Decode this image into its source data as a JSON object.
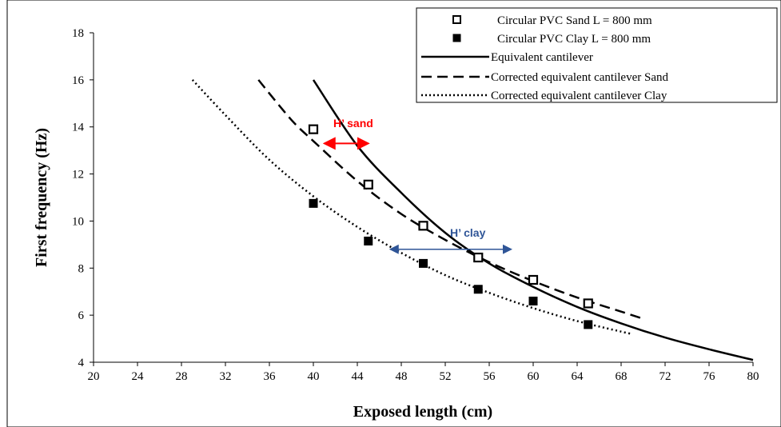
{
  "chart_data": {
    "type": "scatter",
    "xlabel": "Exposed length (cm)",
    "ylabel": "First frequency (Hz)",
    "xlim": [
      20,
      80
    ],
    "ylim": [
      4,
      18
    ],
    "xticks": [
      20,
      24,
      28,
      32,
      36,
      40,
      44,
      48,
      52,
      56,
      60,
      64,
      68,
      72,
      76,
      80
    ],
    "yticks": [
      4,
      6,
      8,
      10,
      12,
      14,
      16,
      18
    ],
    "grid": false,
    "legend_position": "top-right",
    "series": [
      {
        "name": "Circular PVC Sand L = 800 mm",
        "kind": "markers",
        "marker": "open-square",
        "x": [
          40,
          45,
          50,
          55,
          60,
          65
        ],
        "y": [
          13.9,
          11.55,
          9.8,
          8.45,
          7.5,
          6.5
        ]
      },
      {
        "name": "Circular PVC Clay L = 800 mm",
        "kind": "markers",
        "marker": "filled-square",
        "x": [
          40,
          45,
          50,
          55,
          60,
          65
        ],
        "y": [
          10.75,
          9.15,
          8.2,
          7.1,
          6.6,
          5.6
        ]
      },
      {
        "name": "Equivalent cantilever",
        "kind": "line",
        "dash": "solid",
        "x": [
          40,
          44,
          48,
          52,
          56,
          60,
          64,
          68,
          72,
          76,
          80
        ],
        "y": [
          16.0,
          13.2,
          11.2,
          9.5,
          8.2,
          7.2,
          6.35,
          5.65,
          5.05,
          4.55,
          4.1
        ]
      },
      {
        "name": "Corrected equivalent cantilever Sand",
        "kind": "line",
        "dash": "dashed",
        "x": [
          35,
          38,
          40,
          44,
          48,
          52,
          56,
          60,
          64,
          68,
          70
        ],
        "y": [
          16.0,
          14.3,
          13.4,
          11.7,
          10.3,
          9.2,
          8.25,
          7.45,
          6.75,
          6.15,
          5.85
        ]
      },
      {
        "name": "Corrected equivalent cantilever Clay",
        "kind": "line",
        "dash": "dotted",
        "x": [
          29,
          32,
          36,
          40,
          44,
          48,
          52,
          56,
          60,
          64,
          68,
          69
        ],
        "y": [
          16.0,
          14.5,
          12.6,
          11.05,
          9.75,
          8.65,
          7.7,
          6.95,
          6.3,
          5.75,
          5.3,
          5.2
        ]
      }
    ],
    "annotations": [
      {
        "text": "H’ sand",
        "color": "#ff0000",
        "x_from": 41,
        "x_to": 45,
        "y": 13.3
      },
      {
        "text": "H’ clay",
        "color": "#2f5597",
        "x_from": 47,
        "x_to": 58,
        "y": 8.8
      }
    ]
  }
}
